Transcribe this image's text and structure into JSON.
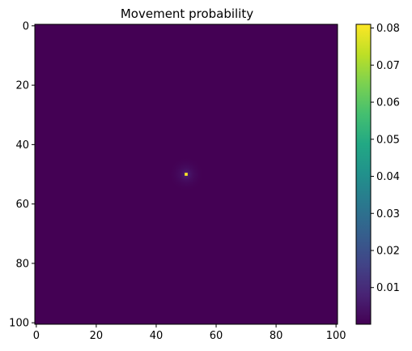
{
  "chart_data": {
    "type": "heatmap",
    "title": "Movement probability",
    "grid_size": 101,
    "x_ticks": [
      0,
      20,
      40,
      60,
      80,
      100
    ],
    "y_ticks": [
      0,
      20,
      40,
      60,
      80,
      100
    ],
    "xlim": [
      -0.5,
      100.5
    ],
    "ylim": [
      100.5,
      -0.5
    ],
    "peak": {
      "x": 50,
      "y": 50,
      "value": 0.081
    },
    "colorbar": {
      "colormap": "viridis",
      "range": [
        0.0001,
        0.081
      ],
      "ticks": [
        0.01,
        0.02,
        0.03,
        0.04,
        0.05,
        0.06,
        0.07,
        0.08
      ],
      "tick_labels": [
        "0.01",
        "0.02",
        "0.03",
        "0.04",
        "0.05",
        "0.06",
        "0.07",
        "0.08"
      ]
    },
    "grid": false
  }
}
